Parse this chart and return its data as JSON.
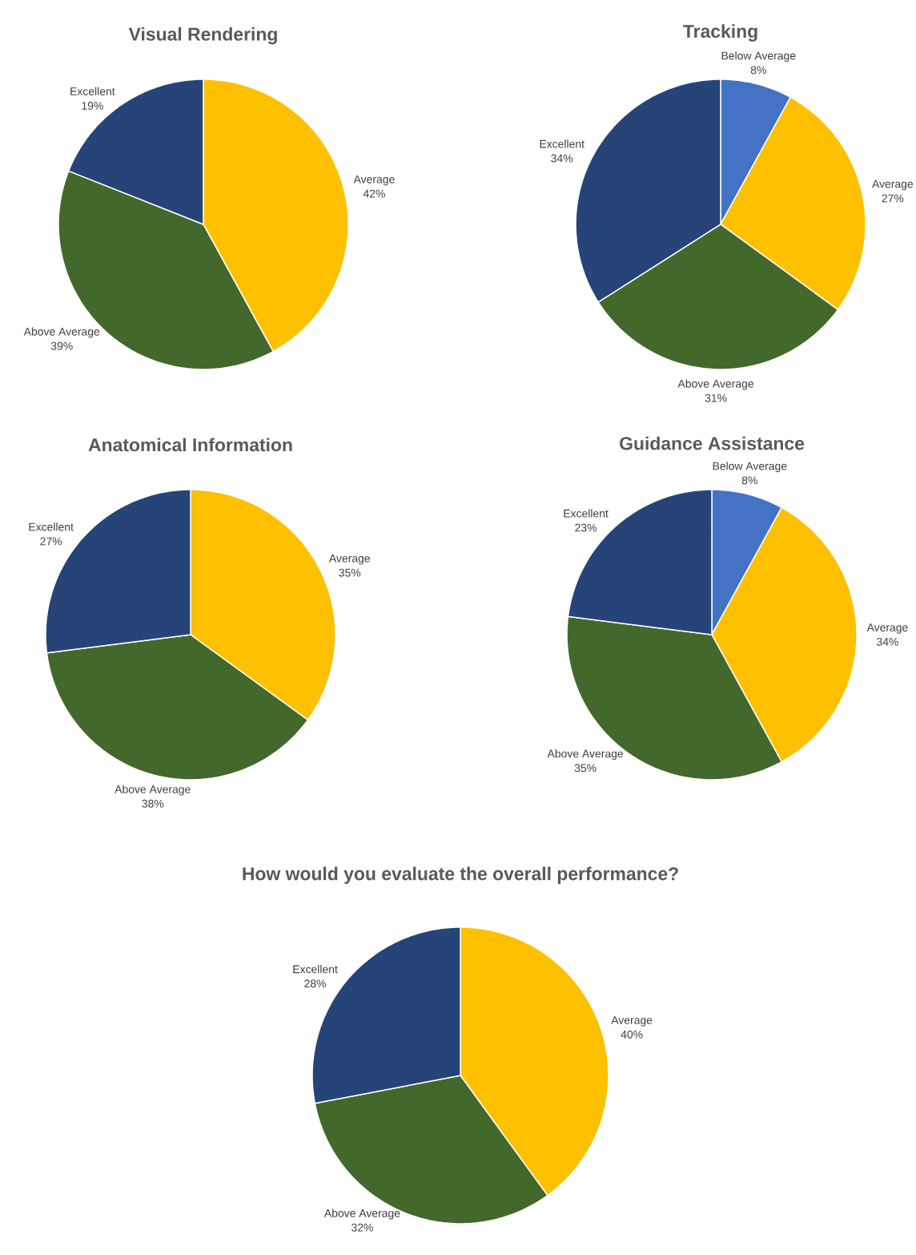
{
  "chart_data": [
    {
      "type": "pie",
      "title": "Visual Rendering",
      "categories": [
        "Average",
        "Above Average",
        "Excellent"
      ],
      "values": [
        42,
        39,
        19
      ],
      "value_labels": [
        "42%",
        "39%",
        "19%"
      ],
      "colors": [
        "#ffc000",
        "#43682b",
        "#264478"
      ]
    },
    {
      "type": "pie",
      "title": "Tracking",
      "categories": [
        "Below Average",
        "Average",
        "Above Average",
        "Excellent"
      ],
      "values": [
        8,
        27,
        31,
        34
      ],
      "value_labels": [
        "8%",
        "27%",
        "31%",
        "34%"
      ],
      "colors": [
        "#4472c4",
        "#ffc000",
        "#43682b",
        "#264478"
      ]
    },
    {
      "type": "pie",
      "title": "Anatomical Information",
      "categories": [
        "Average",
        "Above Average",
        "Excellent"
      ],
      "values": [
        35,
        38,
        27
      ],
      "value_labels": [
        "35%",
        "38%",
        "27%"
      ],
      "colors": [
        "#ffc000",
        "#43682b",
        "#264478"
      ]
    },
    {
      "type": "pie",
      "title": "Guidance Assistance",
      "categories": [
        "Below Average",
        "Average",
        "Above Average",
        "Excellent"
      ],
      "values": [
        8,
        34,
        35,
        23
      ],
      "value_labels": [
        "8%",
        "34%",
        "35%",
        "23%"
      ],
      "colors": [
        "#4472c4",
        "#ffc000",
        "#43682b",
        "#264478"
      ]
    },
    {
      "type": "pie",
      "title": "How would you evaluate the overall performance?",
      "categories": [
        "Average",
        "Above Average",
        "Excellent"
      ],
      "values": [
        40,
        32,
        28
      ],
      "value_labels": [
        "40%",
        "32%",
        "28%"
      ],
      "colors": [
        "#ffc000",
        "#43682b",
        "#264478"
      ]
    }
  ]
}
